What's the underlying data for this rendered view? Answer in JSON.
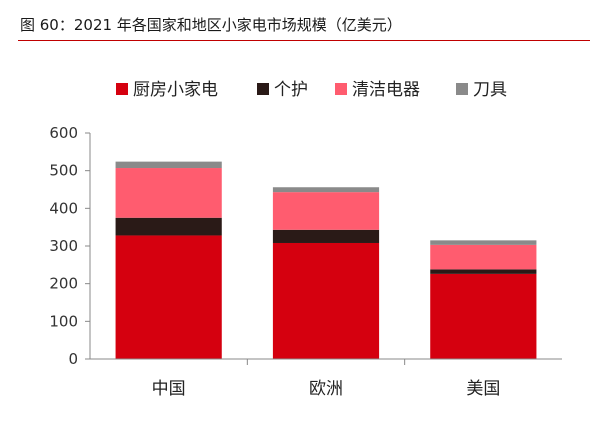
{
  "figure_title": "图 60：2021 年各国家和地区小家电市场规模（亿美元）",
  "chart_data": {
    "type": "bar",
    "stacked": true,
    "title": "",
    "xlabel": "",
    "ylabel": "",
    "categories": [
      "中国",
      "欧洲",
      "美国"
    ],
    "series": [
      {
        "name": "厨房小家电",
        "values": [
          328,
          308,
          226
        ],
        "color": "#d5000f"
      },
      {
        "name": "个护",
        "values": [
          47,
          35,
          12
        ],
        "color": "#2a1a17"
      },
      {
        "name": "清洁电器",
        "values": [
          132,
          100,
          65
        ],
        "color": "#ff5c6f"
      },
      {
        "name": "刀具",
        "values": [
          17,
          13,
          12
        ],
        "color": "#8a8a8a"
      }
    ],
    "ylim": [
      0,
      600
    ],
    "yticks": [
      0,
      100,
      200,
      300,
      400,
      500,
      600
    ],
    "grid": false,
    "legend": "top-center"
  }
}
